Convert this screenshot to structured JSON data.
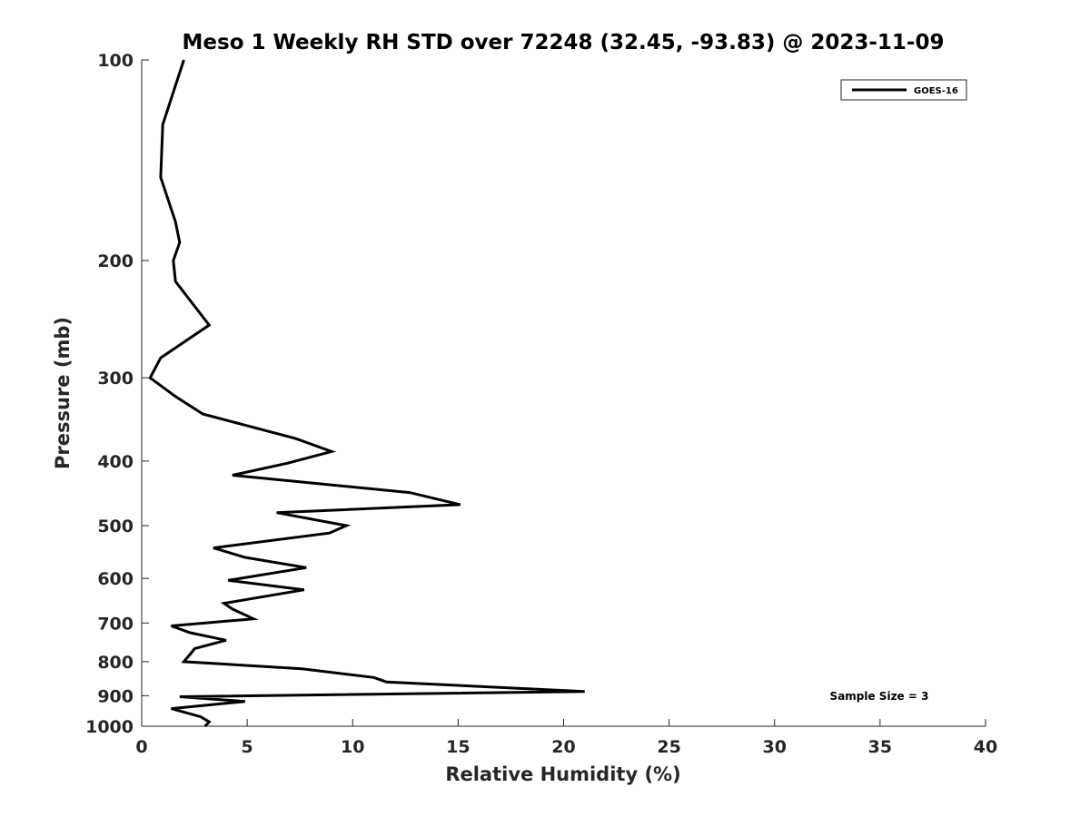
{
  "chart_data": {
    "type": "line",
    "title": "Meso 1 Weekly RH STD over 72248 (32.45, -93.83) @ 2023-11-09",
    "xlabel": "Relative Humidity (%)",
    "ylabel": "Pressure (mb)",
    "xlim": [
      0,
      40
    ],
    "ylim": [
      100,
      1000
    ],
    "yscale": "log",
    "y_reversed": true,
    "x_ticks": [
      "0",
      "5",
      "10",
      "15",
      "20",
      "25",
      "30",
      "35",
      "40"
    ],
    "y_ticks": [
      "100",
      "200",
      "300",
      "400",
      "500",
      "600",
      "700",
      "800",
      "900",
      "1000"
    ],
    "grid": false,
    "legend": {
      "placement": "top-right",
      "entries": [
        "GOES-16"
      ]
    },
    "annotation": "Sample Size = 3",
    "series": [
      {
        "name": "GOES-16",
        "color": "#000000",
        "points": [
          [
            2.0,
            100
          ],
          [
            1.0,
            125
          ],
          [
            0.9,
            150
          ],
          [
            1.6,
            175
          ],
          [
            1.8,
            188
          ],
          [
            1.5,
            200
          ],
          [
            1.6,
            215
          ],
          [
            3.2,
            250
          ],
          [
            0.9,
            280
          ],
          [
            0.4,
            300
          ],
          [
            1.6,
            320
          ],
          [
            2.9,
            340
          ],
          [
            7.3,
            370
          ],
          [
            9.0,
            387
          ],
          [
            6.9,
            403
          ],
          [
            4.3,
            420
          ],
          [
            12.7,
            446
          ],
          [
            15.1,
            465
          ],
          [
            6.4,
            478
          ],
          [
            9.7,
            500
          ],
          [
            8.9,
            513
          ],
          [
            3.4,
            540
          ],
          [
            4.9,
            558
          ],
          [
            7.8,
            578
          ],
          [
            4.1,
            604
          ],
          [
            7.7,
            624
          ],
          [
            3.9,
            654
          ],
          [
            4.3,
            667
          ],
          [
            5.3,
            690
          ],
          [
            1.4,
            707
          ],
          [
            2.3,
            724
          ],
          [
            4.0,
            743
          ],
          [
            2.5,
            765
          ],
          [
            2.4,
            773
          ],
          [
            2.0,
            800
          ],
          [
            7.6,
            820
          ],
          [
            11.0,
            845
          ],
          [
            11.6,
            858
          ],
          [
            21.0,
            887
          ],
          [
            1.8,
            903
          ],
          [
            4.9,
            918
          ],
          [
            1.4,
            941
          ],
          [
            2.8,
            968
          ],
          [
            3.2,
            985
          ],
          [
            3.0,
            1000
          ]
        ]
      }
    ]
  }
}
